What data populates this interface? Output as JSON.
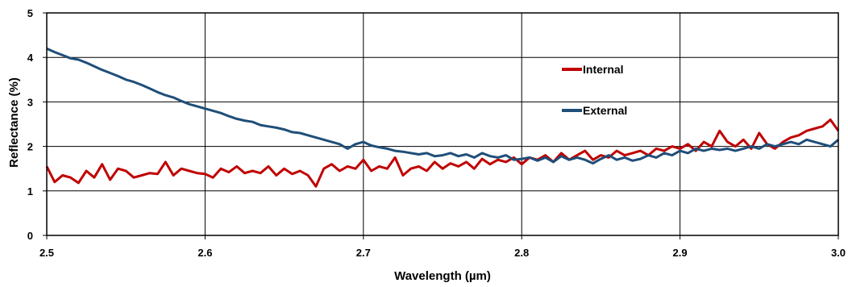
{
  "chart_data": {
    "type": "line",
    "title": "",
    "xlabel": "Wavelength (µm)",
    "ylabel": "Reflectance (%)",
    "xlim": [
      2.5,
      3.0
    ],
    "ylim": [
      0,
      5
    ],
    "x_ticks": [
      2.5,
      2.6,
      2.7,
      2.8,
      2.9,
      3.0
    ],
    "x_tick_labels": [
      "2.5",
      "2.6",
      "2.7",
      "2.8",
      "2.9",
      "3.0"
    ],
    "y_ticks": [
      0,
      1,
      2,
      3,
      4,
      5
    ],
    "y_tick_labels": [
      "0",
      "1",
      "2",
      "3",
      "4",
      "5"
    ],
    "grid": true,
    "legend_position": "upper-right-inside",
    "series": [
      {
        "name": "Internal",
        "color": "#c00000",
        "points": [
          [
            2.5,
            1.55
          ],
          [
            2.505,
            1.2
          ],
          [
            2.51,
            1.35
          ],
          [
            2.515,
            1.3
          ],
          [
            2.52,
            1.18
          ],
          [
            2.525,
            1.45
          ],
          [
            2.53,
            1.3
          ],
          [
            2.535,
            1.6
          ],
          [
            2.54,
            1.25
          ],
          [
            2.545,
            1.5
          ],
          [
            2.55,
            1.45
          ],
          [
            2.555,
            1.3
          ],
          [
            2.56,
            1.35
          ],
          [
            2.565,
            1.4
          ],
          [
            2.57,
            1.38
          ],
          [
            2.575,
            1.65
          ],
          [
            2.58,
            1.35
          ],
          [
            2.585,
            1.5
          ],
          [
            2.59,
            1.45
          ],
          [
            2.595,
            1.4
          ],
          [
            2.6,
            1.38
          ],
          [
            2.605,
            1.3
          ],
          [
            2.61,
            1.5
          ],
          [
            2.615,
            1.42
          ],
          [
            2.62,
            1.55
          ],
          [
            2.625,
            1.4
          ],
          [
            2.63,
            1.45
          ],
          [
            2.635,
            1.4
          ],
          [
            2.64,
            1.55
          ],
          [
            2.645,
            1.35
          ],
          [
            2.65,
            1.5
          ],
          [
            2.655,
            1.38
          ],
          [
            2.66,
            1.45
          ],
          [
            2.665,
            1.35
          ],
          [
            2.67,
            1.1
          ],
          [
            2.675,
            1.5
          ],
          [
            2.68,
            1.6
          ],
          [
            2.685,
            1.45
          ],
          [
            2.69,
            1.55
          ],
          [
            2.695,
            1.5
          ],
          [
            2.7,
            1.7
          ],
          [
            2.705,
            1.45
          ],
          [
            2.71,
            1.55
          ],
          [
            2.715,
            1.5
          ],
          [
            2.72,
            1.75
          ],
          [
            2.725,
            1.35
          ],
          [
            2.73,
            1.5
          ],
          [
            2.735,
            1.55
          ],
          [
            2.74,
            1.45
          ],
          [
            2.745,
            1.65
          ],
          [
            2.75,
            1.5
          ],
          [
            2.755,
            1.62
          ],
          [
            2.76,
            1.55
          ],
          [
            2.765,
            1.65
          ],
          [
            2.77,
            1.5
          ],
          [
            2.775,
            1.72
          ],
          [
            2.78,
            1.6
          ],
          [
            2.785,
            1.7
          ],
          [
            2.79,
            1.65
          ],
          [
            2.795,
            1.75
          ],
          [
            2.8,
            1.6
          ],
          [
            2.805,
            1.75
          ],
          [
            2.81,
            1.7
          ],
          [
            2.815,
            1.8
          ],
          [
            2.82,
            1.65
          ],
          [
            2.825,
            1.85
          ],
          [
            2.83,
            1.7
          ],
          [
            2.835,
            1.8
          ],
          [
            2.84,
            1.9
          ],
          [
            2.845,
            1.7
          ],
          [
            2.85,
            1.8
          ],
          [
            2.855,
            1.75
          ],
          [
            2.86,
            1.9
          ],
          [
            2.865,
            1.8
          ],
          [
            2.87,
            1.85
          ],
          [
            2.875,
            1.9
          ],
          [
            2.88,
            1.8
          ],
          [
            2.885,
            1.95
          ],
          [
            2.89,
            1.9
          ],
          [
            2.895,
            2.0
          ],
          [
            2.9,
            1.95
          ],
          [
            2.905,
            2.05
          ],
          [
            2.91,
            1.9
          ],
          [
            2.915,
            2.1
          ],
          [
            2.92,
            2.0
          ],
          [
            2.925,
            2.35
          ],
          [
            2.93,
            2.1
          ],
          [
            2.935,
            2.0
          ],
          [
            2.94,
            2.15
          ],
          [
            2.945,
            1.95
          ],
          [
            2.95,
            2.3
          ],
          [
            2.955,
            2.05
          ],
          [
            2.96,
            1.95
          ],
          [
            2.965,
            2.1
          ],
          [
            2.97,
            2.2
          ],
          [
            2.975,
            2.25
          ],
          [
            2.98,
            2.35
          ],
          [
            2.985,
            2.4
          ],
          [
            2.99,
            2.45
          ],
          [
            2.995,
            2.6
          ],
          [
            3.0,
            2.35
          ]
        ]
      },
      {
        "name": "External",
        "color": "#1f4e79",
        "points": [
          [
            2.5,
            4.2
          ],
          [
            2.505,
            4.12
          ],
          [
            2.51,
            4.05
          ],
          [
            2.515,
            3.98
          ],
          [
            2.52,
            3.95
          ],
          [
            2.525,
            3.88
          ],
          [
            2.53,
            3.8
          ],
          [
            2.535,
            3.72
          ],
          [
            2.54,
            3.65
          ],
          [
            2.545,
            3.58
          ],
          [
            2.55,
            3.5
          ],
          [
            2.555,
            3.45
          ],
          [
            2.56,
            3.38
          ],
          [
            2.565,
            3.3
          ],
          [
            2.57,
            3.22
          ],
          [
            2.575,
            3.15
          ],
          [
            2.58,
            3.1
          ],
          [
            2.585,
            3.02
          ],
          [
            2.59,
            2.95
          ],
          [
            2.595,
            2.9
          ],
          [
            2.6,
            2.85
          ],
          [
            2.605,
            2.8
          ],
          [
            2.61,
            2.75
          ],
          [
            2.615,
            2.68
          ],
          [
            2.62,
            2.62
          ],
          [
            2.625,
            2.58
          ],
          [
            2.63,
            2.55
          ],
          [
            2.635,
            2.48
          ],
          [
            2.64,
            2.45
          ],
          [
            2.645,
            2.42
          ],
          [
            2.65,
            2.38
          ],
          [
            2.655,
            2.32
          ],
          [
            2.66,
            2.3
          ],
          [
            2.665,
            2.25
          ],
          [
            2.67,
            2.2
          ],
          [
            2.675,
            2.15
          ],
          [
            2.68,
            2.1
          ],
          [
            2.685,
            2.05
          ],
          [
            2.69,
            1.95
          ],
          [
            2.695,
            2.05
          ],
          [
            2.7,
            2.1
          ],
          [
            2.705,
            2.02
          ],
          [
            2.71,
            1.98
          ],
          [
            2.715,
            1.95
          ],
          [
            2.72,
            1.9
          ],
          [
            2.725,
            1.88
          ],
          [
            2.73,
            1.85
          ],
          [
            2.735,
            1.82
          ],
          [
            2.74,
            1.85
          ],
          [
            2.745,
            1.78
          ],
          [
            2.75,
            1.8
          ],
          [
            2.755,
            1.85
          ],
          [
            2.76,
            1.78
          ],
          [
            2.765,
            1.82
          ],
          [
            2.77,
            1.75
          ],
          [
            2.775,
            1.85
          ],
          [
            2.78,
            1.78
          ],
          [
            2.785,
            1.75
          ],
          [
            2.79,
            1.8
          ],
          [
            2.795,
            1.7
          ],
          [
            2.8,
            1.72
          ],
          [
            2.805,
            1.75
          ],
          [
            2.81,
            1.68
          ],
          [
            2.815,
            1.75
          ],
          [
            2.82,
            1.65
          ],
          [
            2.825,
            1.78
          ],
          [
            2.83,
            1.7
          ],
          [
            2.835,
            1.75
          ],
          [
            2.84,
            1.7
          ],
          [
            2.845,
            1.62
          ],
          [
            2.85,
            1.72
          ],
          [
            2.855,
            1.8
          ],
          [
            2.86,
            1.7
          ],
          [
            2.865,
            1.75
          ],
          [
            2.87,
            1.68
          ],
          [
            2.875,
            1.72
          ],
          [
            2.88,
            1.8
          ],
          [
            2.885,
            1.75
          ],
          [
            2.89,
            1.85
          ],
          [
            2.895,
            1.8
          ],
          [
            2.9,
            1.9
          ],
          [
            2.905,
            1.85
          ],
          [
            2.91,
            1.95
          ],
          [
            2.915,
            1.9
          ],
          [
            2.92,
            1.95
          ],
          [
            2.925,
            1.92
          ],
          [
            2.93,
            1.95
          ],
          [
            2.935,
            1.9
          ],
          [
            2.94,
            1.95
          ],
          [
            2.945,
            2.0
          ],
          [
            2.95,
            1.95
          ],
          [
            2.955,
            2.05
          ],
          [
            2.96,
            2.0
          ],
          [
            2.965,
            2.05
          ],
          [
            2.97,
            2.1
          ],
          [
            2.975,
            2.05
          ],
          [
            2.98,
            2.15
          ],
          [
            2.985,
            2.1
          ],
          [
            2.99,
            2.05
          ],
          [
            2.995,
            2.0
          ],
          [
            3.0,
            2.15
          ]
        ]
      }
    ]
  }
}
